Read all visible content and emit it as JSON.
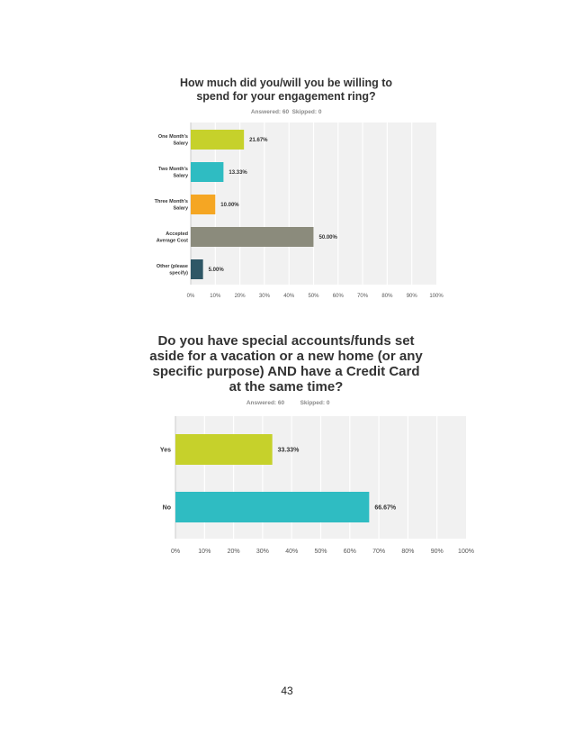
{
  "page": {
    "number": "43"
  },
  "colors": {
    "plot_background": "#f1f1f1",
    "gridline": "#ffffff",
    "axis": "#cccccc"
  },
  "chart_data": [
    {
      "type": "bar",
      "orientation": "horizontal",
      "title": [
        "How much did you/will you be willing to",
        "spend for your engagement ring?"
      ],
      "answered": "Answered: 60",
      "skipped": "Skipped: 0",
      "categories": [
        [
          "One Month's",
          "Salary"
        ],
        [
          "Two Month's",
          "Salary"
        ],
        [
          "Three Month's",
          "Salary"
        ],
        [
          "Accepted",
          "Average Cost"
        ],
        [
          "Other (please",
          "specify)"
        ]
      ],
      "values": [
        21.67,
        13.33,
        10.0,
        50.0,
        5.0
      ],
      "value_labels": [
        "21.67%",
        "13.33%",
        "10.00%",
        "50.00%",
        "5.00%"
      ],
      "colors": [
        "#c6d12b",
        "#2fbcc2",
        "#f5a623",
        "#8b8b7c",
        "#2f5766"
      ],
      "xlim": [
        0,
        100
      ],
      "xticks": [
        "0%",
        "10%",
        "20%",
        "30%",
        "40%",
        "50%",
        "60%",
        "70%",
        "80%",
        "90%",
        "100%"
      ],
      "grid": true
    },
    {
      "type": "bar",
      "orientation": "horizontal",
      "title": [
        "Do you have special accounts/funds set",
        "aside for a vacation or a new home (or any",
        "specific purpose) AND have a Credit Card",
        "at the same time?"
      ],
      "answered": "Answered: 60",
      "skipped": "Skipped: 0",
      "categories": [
        [
          "Yes"
        ],
        [
          "No"
        ]
      ],
      "values": [
        33.33,
        66.67
      ],
      "value_labels": [
        "33.33%",
        "66.67%"
      ],
      "colors": [
        "#c6d12b",
        "#2fbcc2"
      ],
      "xlim": [
        0,
        100
      ],
      "xticks": [
        "0%",
        "10%",
        "20%",
        "30%",
        "40%",
        "50%",
        "60%",
        "70%",
        "80%",
        "90%",
        "100%"
      ],
      "grid": true
    }
  ]
}
